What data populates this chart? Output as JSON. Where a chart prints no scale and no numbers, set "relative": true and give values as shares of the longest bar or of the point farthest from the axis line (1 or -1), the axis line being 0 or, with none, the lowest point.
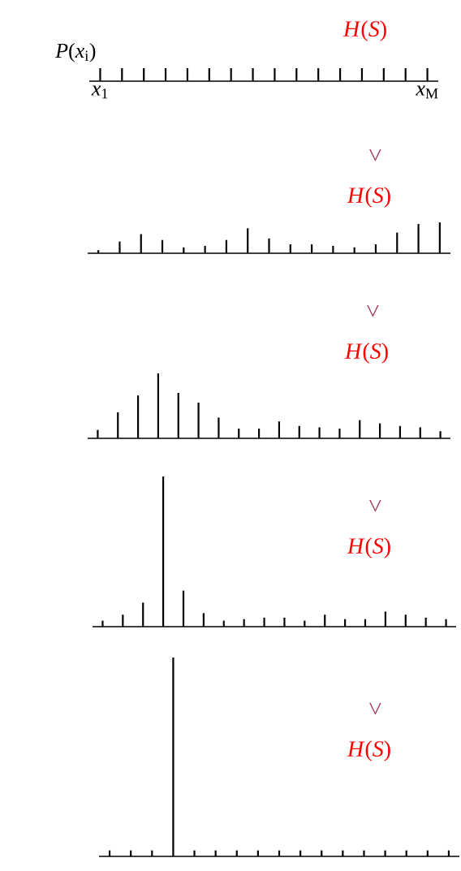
{
  "chart_data": [
    {
      "type": "bar",
      "relative": true,
      "ylabel": "*P*(*x*$_{i}$)",
      "color": "#000000",
      "categories": [
        "*x*$_{1}$",
        null,
        null,
        null,
        null,
        null,
        null,
        null,
        null,
        null,
        null,
        null,
        null,
        null,
        null,
        "*x*$_{M}$"
      ],
      "values": [
        1,
        1,
        1,
        1,
        1,
        1,
        1,
        1,
        1,
        1,
        1,
        1,
        1,
        1,
        1,
        1
      ],
      "annotations": [
        "*H*(*S*)"
      ]
    },
    {
      "type": "bar",
      "relative": true,
      "color": "#000000",
      "categories": [
        null,
        null,
        null,
        null,
        null,
        null,
        null,
        null,
        null,
        null,
        null,
        null,
        null,
        null,
        null,
        null,
        null
      ],
      "values": [
        0.1,
        0.38,
        0.62,
        0.43,
        0.19,
        0.24,
        0.43,
        0.81,
        0.48,
        0.29,
        0.29,
        0.24,
        0.19,
        0.29,
        0.67,
        0.95,
        1
      ],
      "annotations": [
        ">",
        "*H*(*S*)"
      ]
    },
    {
      "type": "bar",
      "relative": true,
      "color": "#000000",
      "categories": [
        null,
        null,
        null,
        null,
        null,
        null,
        null,
        null,
        null,
        null,
        null,
        null,
        null,
        null,
        null,
        null,
        null,
        null
      ],
      "values": [
        0.13,
        0.4,
        0.66,
        1,
        0.7,
        0.55,
        0.32,
        0.15,
        0.15,
        0.26,
        0.19,
        0.17,
        0.15,
        0.28,
        0.23,
        0.19,
        0.17,
        0.11
      ],
      "annotations": [
        ">",
        "*H*(*S*)"
      ]
    },
    {
      "type": "bar",
      "relative": true,
      "color": "#000000",
      "categories": [
        null,
        null,
        null,
        null,
        null,
        null,
        null,
        null,
        null,
        null,
        null,
        null,
        null,
        null,
        null,
        null,
        null,
        null
      ],
      "values": [
        0.04,
        0.08,
        0.16,
        1,
        0.24,
        0.09,
        0.04,
        0.05,
        0.06,
        0.06,
        0.04,
        0.08,
        0.05,
        0.05,
        0.1,
        0.08,
        0.06,
        0.05
      ],
      "annotations": [
        ">",
        "*H*(*S*)"
      ]
    },
    {
      "type": "bar",
      "relative": true,
      "color": "#000000",
      "categories": [
        null,
        null,
        null,
        null,
        null,
        null,
        null,
        null,
        null,
        null,
        null,
        null,
        null,
        null,
        null,
        null,
        null
      ],
      "values": [
        0.03,
        0.03,
        0.03,
        1,
        0.03,
        0.03,
        0.03,
        0.03,
        0.03,
        0.03,
        0.03,
        0.03,
        0.03,
        0.03,
        0.03,
        0.03,
        0.03
      ],
      "annotations": [
        ">",
        "*H*(*S*)"
      ]
    }
  ]
}
